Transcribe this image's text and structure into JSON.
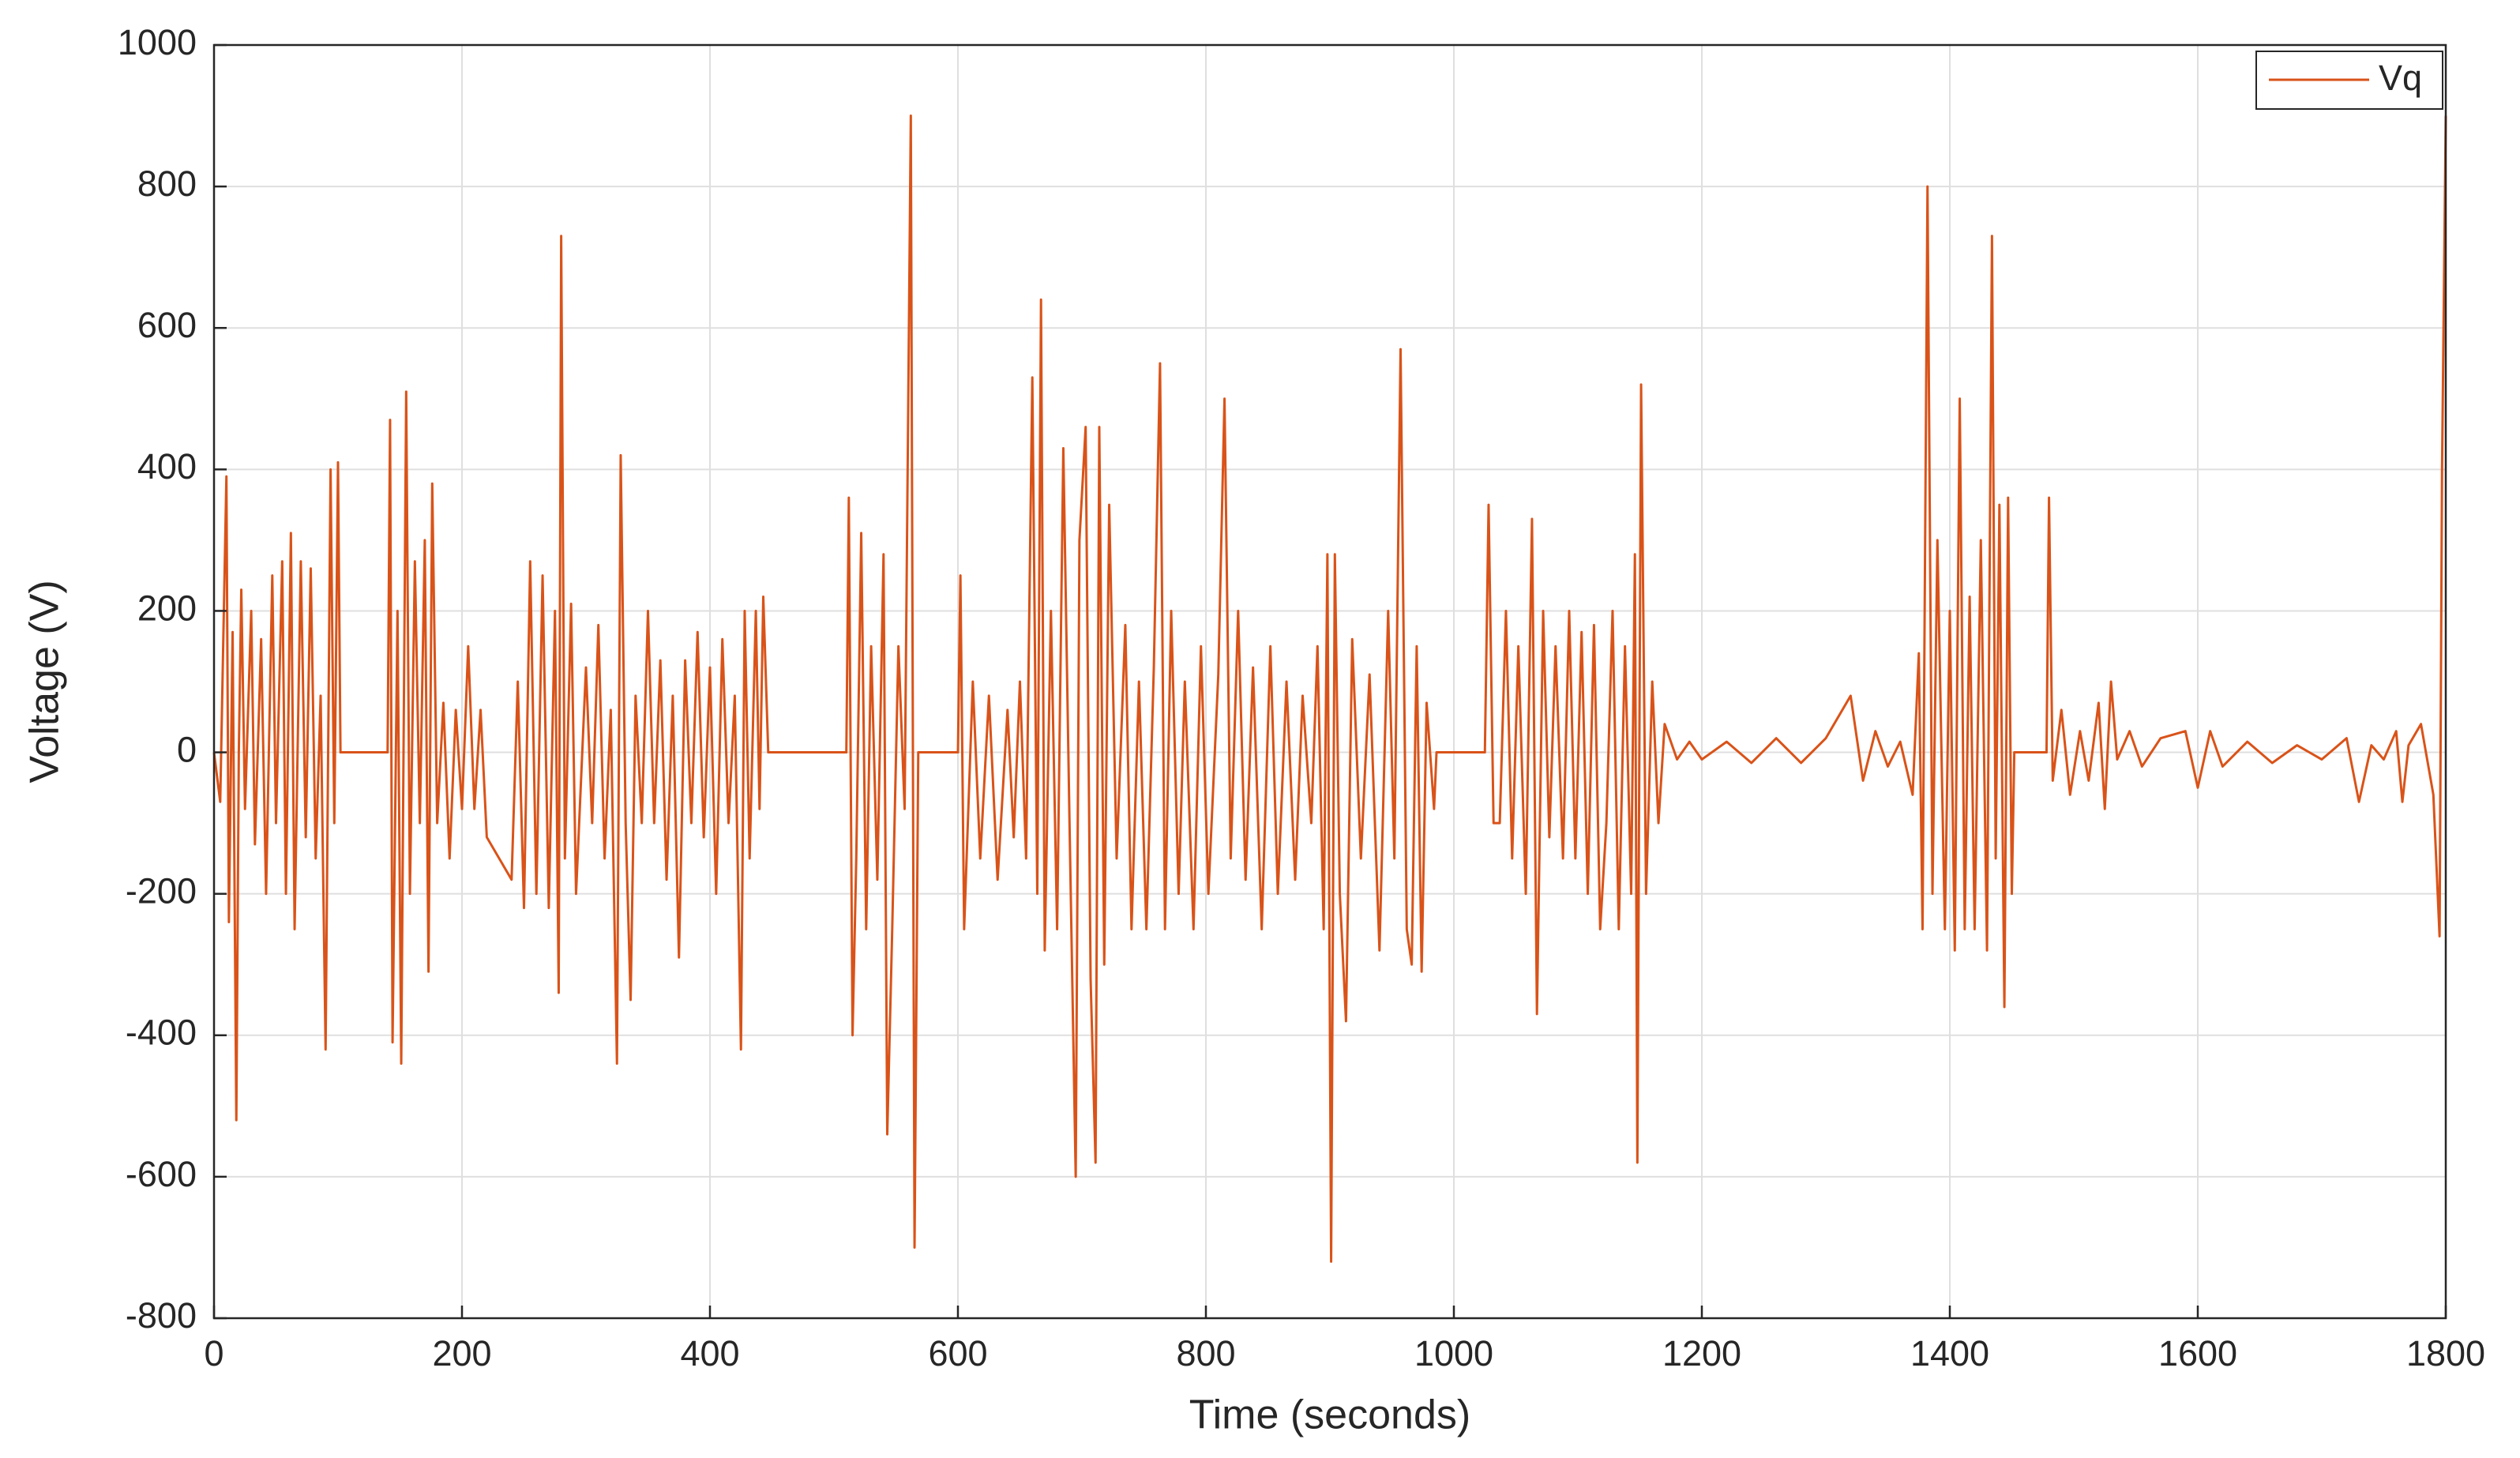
{
  "chart_data": {
    "type": "line",
    "x_label": "Time (seconds)",
    "y_label": "Voltage (V)",
    "x": [
      0,
      5,
      10,
      12,
      15,
      18,
      20,
      22,
      25,
      30,
      33,
      38,
      42,
      47,
      50,
      55,
      58,
      62,
      65,
      70,
      74,
      78,
      82,
      86,
      90,
      94,
      97,
      100,
      102,
      140,
      142,
      144,
      148,
      151,
      155,
      158,
      162,
      166,
      170,
      173,
      176,
      180,
      185,
      190,
      195,
      200,
      205,
      210,
      215,
      220,
      240,
      245,
      250,
      255,
      260,
      265,
      270,
      275,
      278,
      280,
      283,
      288,
      292,
      300,
      305,
      310,
      315,
      320,
      325,
      328,
      332,
      336,
      340,
      345,
      350,
      355,
      360,
      365,
      370,
      375,
      380,
      385,
      390,
      395,
      400,
      405,
      410,
      415,
      420,
      425,
      428,
      432,
      437,
      440,
      443,
      447,
      510,
      512,
      515,
      518,
      522,
      526,
      530,
      535,
      540,
      543,
      547,
      552,
      557,
      562,
      565,
      568,
      600,
      602,
      605,
      612,
      618,
      625,
      632,
      640,
      645,
      650,
      655,
      660,
      664,
      667,
      670,
      675,
      680,
      685,
      690,
      695,
      698,
      703,
      707,
      711,
      714,
      718,
      722,
      728,
      735,
      740,
      746,
      752,
      758,
      763,
      767,
      772,
      778,
      783,
      790,
      796,
      802,
      810,
      815,
      820,
      826,
      832,
      838,
      845,
      852,
      858,
      865,
      872,
      878,
      885,
      890,
      895,
      898,
      901,
      904,
      908,
      913,
      918,
      925,
      932,
      940,
      947,
      952,
      957,
      962,
      966,
      970,
      974,
      978,
      984,
      986,
      1025,
      1028,
      1032,
      1037,
      1042,
      1047,
      1052,
      1058,
      1063,
      1067,
      1072,
      1077,
      1082,
      1088,
      1093,
      1098,
      1103,
      1108,
      1113,
      1118,
      1123,
      1128,
      1133,
      1138,
      1143,
      1146,
      1148,
      1151,
      1155,
      1160,
      1165,
      1170,
      1180,
      1190,
      1200,
      1220,
      1240,
      1260,
      1280,
      1300,
      1320,
      1330,
      1340,
      1350,
      1360,
      1370,
      1375,
      1378,
      1382,
      1386,
      1390,
      1396,
      1400,
      1404,
      1408,
      1412,
      1416,
      1420,
      1425,
      1430,
      1434,
      1437,
      1440,
      1444,
      1447,
      1450,
      1452,
      1478,
      1480,
      1483,
      1490,
      1497,
      1505,
      1512,
      1520,
      1525,
      1530,
      1535,
      1545,
      1555,
      1570,
      1590,
      1600,
      1610,
      1620,
      1640,
      1660,
      1680,
      1700,
      1720,
      1730,
      1740,
      1750,
      1760,
      1765,
      1770,
      1780,
      1790,
      1795,
      1797,
      1800
    ],
    "series": [
      {
        "name": "Vq",
        "color": "#d95319",
        "values": [
          0,
          -70,
          390,
          -240,
          170,
          -520,
          0,
          230,
          -80,
          200,
          -130,
          160,
          -200,
          250,
          -100,
          270,
          -200,
          310,
          -250,
          270,
          -120,
          260,
          -150,
          80,
          -420,
          400,
          -100,
          410,
          0,
          0,
          470,
          -410,
          200,
          -440,
          510,
          -200,
          270,
          -100,
          300,
          -310,
          380,
          -100,
          70,
          -150,
          60,
          -80,
          150,
          -80,
          60,
          -120,
          -180,
          100,
          -220,
          270,
          -200,
          250,
          -220,
          200,
          -340,
          730,
          -150,
          210,
          -200,
          120,
          -100,
          180,
          -150,
          60,
          -440,
          420,
          -100,
          -350,
          80,
          -100,
          200,
          -100,
          130,
          -180,
          80,
          -290,
          130,
          -100,
          170,
          -120,
          120,
          -200,
          160,
          -100,
          80,
          -420,
          200,
          -150,
          200,
          -80,
          220,
          0,
          0,
          360,
          -400,
          -150,
          310,
          -250,
          150,
          -180,
          280,
          -540,
          -250,
          150,
          -80,
          900,
          -700,
          0,
          0,
          250,
          -250,
          100,
          -150,
          80,
          -180,
          60,
          -120,
          100,
          -150,
          530,
          -200,
          640,
          -280,
          200,
          -250,
          430,
          -100,
          -600,
          300,
          460,
          -320,
          -580,
          460,
          -300,
          350,
          -150,
          180,
          -250,
          100,
          -250,
          120,
          550,
          -250,
          200,
          -200,
          100,
          -250,
          150,
          -200,
          110,
          500,
          -150,
          200,
          -180,
          120,
          -250,
          150,
          -200,
          100,
          -180,
          80,
          -100,
          150,
          -250,
          280,
          -720,
          280,
          -200,
          -380,
          160,
          -150,
          110,
          -280,
          200,
          -150,
          570,
          -250,
          -300,
          150,
          -310,
          70,
          -80,
          0,
          0,
          350,
          -100,
          -100,
          200,
          -150,
          150,
          -200,
          330,
          -370,
          200,
          -120,
          150,
          -150,
          200,
          -150,
          170,
          -200,
          180,
          -250,
          -100,
          200,
          -250,
          150,
          -200,
          280,
          -580,
          520,
          -200,
          100,
          -100,
          40,
          -10,
          15,
          -10,
          15,
          -15,
          20,
          -15,
          20,
          80,
          -40,
          30,
          -20,
          15,
          -60,
          140,
          -250,
          800,
          -200,
          300,
          -250,
          200,
          -280,
          500,
          -250,
          220,
          -250,
          300,
          -280,
          730,
          -150,
          350,
          -360,
          360,
          -200,
          0,
          0,
          360,
          -40,
          60,
          -60,
          30,
          -40,
          70,
          -80,
          100,
          -10,
          30,
          -20,
          20,
          30,
          -50,
          30,
          -20,
          15,
          -15,
          10,
          -10,
          20,
          -70,
          10,
          -10,
          30,
          -70,
          10,
          40,
          -60,
          -260,
          400,
          900
        ]
      }
    ],
    "xlim": [
      0,
      1800
    ],
    "xticks": [
      0,
      200,
      400,
      600,
      800,
      1000,
      1200,
      1400,
      1600,
      1800
    ],
    "ylim": [
      -800,
      1000
    ],
    "yticks": [
      -800,
      -600,
      -400,
      -200,
      0,
      200,
      400,
      600,
      800,
      1000
    ],
    "grid": true,
    "legend": "upper right"
  }
}
